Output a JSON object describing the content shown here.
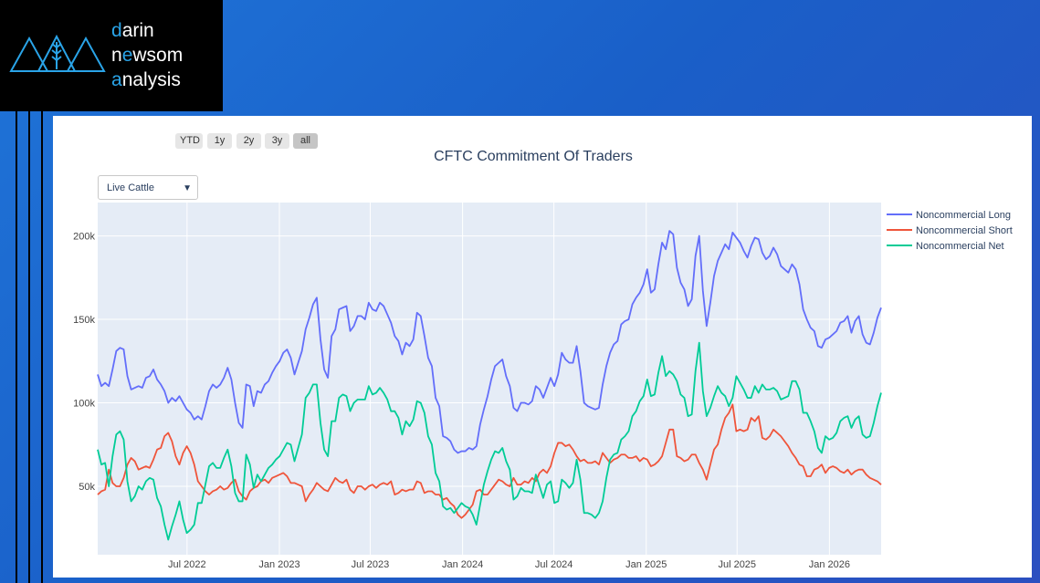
{
  "logo": {
    "lines": [
      {
        "accent": "d",
        "rest": "arin"
      },
      {
        "pre": "n",
        "accent": "e",
        "mid": "w",
        "rest": "som"
      },
      {
        "accent": "a",
        "rest": "nalysis"
      }
    ]
  },
  "range_selector": {
    "buttons": [
      "YTD",
      "1y",
      "2y",
      "3y",
      "all"
    ],
    "active": "all"
  },
  "dropdown": {
    "selected": "Live Cattle"
  },
  "colors": {
    "long": "#636efa",
    "short": "#ef553b",
    "net": "#00cc96",
    "plot_bg": "#e5ecf6"
  },
  "chart_data": {
    "type": "line",
    "title": "CFTC Commitment Of Traders",
    "xlabel": "",
    "ylabel": "",
    "x_start": "2022-01-04",
    "x_end": "2026-04-14",
    "x_ticks": [
      "Jul 2022",
      "Jan 2023",
      "Jul 2023",
      "Jan 2024",
      "Jul 2024",
      "Jan 2025",
      "Jul 2025",
      "Jan 2026"
    ],
    "y_ticks": [
      "50k",
      "100k",
      "150k",
      "200k"
    ],
    "ylim": [
      9000,
      220000
    ],
    "grid": true,
    "legend": "right",
    "series": [
      {
        "name": "Noncommercial Long",
        "values": [
          117000,
          110000,
          112000,
          110000,
          120000,
          131000,
          133000,
          132000,
          116000,
          108000,
          109000,
          110000,
          109000,
          115000,
          116000,
          120000,
          114000,
          111000,
          107000,
          100000,
          103000,
          101000,
          104000,
          100000,
          96000,
          94000,
          90000,
          92000,
          90000,
          98000,
          107000,
          111000,
          109000,
          111000,
          115000,
          121000,
          114000,
          100000,
          88000,
          85000,
          111000,
          110000,
          98000,
          107000,
          106000,
          111000,
          113000,
          118000,
          122000,
          125000,
          130000,
          132000,
          127000,
          117000,
          124000,
          131000,
          144000,
          151000,
          159000,
          163000,
          138000,
          120000,
          115000,
          140000,
          144000,
          156000,
          157000,
          158000,
          143000,
          146000,
          152000,
          152000,
          150000,
          160000,
          156000,
          155000,
          160000,
          158000,
          153000,
          148000,
          140000,
          137000,
          129000,
          136000,
          134000,
          138000,
          154000,
          152000,
          140000,
          127000,
          122000,
          103000,
          98000,
          80000,
          79000,
          77000,
          72000,
          70000,
          71000,
          71000,
          73000,
          72000,
          74000,
          87000,
          96000,
          104000,
          114000,
          122000,
          124000,
          126000,
          116000,
          110000,
          97000,
          95000,
          100000,
          100000,
          99000,
          101000,
          110000,
          108000,
          103000,
          109000,
          115000,
          110000,
          117000,
          130000,
          126000,
          124000,
          124000,
          134000,
          119000,
          100000,
          98000,
          97000,
          96000,
          97000,
          111000,
          122000,
          130000,
          135000,
          137000,
          147000,
          149000,
          150000,
          159000,
          163000,
          166000,
          171000,
          180000,
          166000,
          168000,
          183000,
          196000,
          192000,
          203000,
          201000,
          181000,
          172000,
          168000,
          158000,
          162000,
          188000,
          200000,
          167000,
          146000,
          160000,
          176000,
          185000,
          190000,
          195000,
          192000,
          202000,
          199000,
          196000,
          191000,
          187000,
          194000,
          199000,
          198000,
          190000,
          186000,
          188000,
          193000,
          189000,
          182000,
          180000,
          178000,
          183000,
          180000,
          171000,
          156000,
          150000,
          145000,
          143000,
          134000,
          133000,
          138000,
          139000,
          141000,
          143000,
          148000,
          149000,
          152000,
          142000,
          149000,
          152000,
          141000,
          136000,
          135000,
          142000,
          151000,
          157000
        ]
      },
      {
        "name": "Noncommercial Short",
        "values": [
          45000,
          47000,
          48000,
          60000,
          52000,
          50000,
          50000,
          55000,
          63000,
          67000,
          65000,
          60000,
          61000,
          62000,
          61000,
          66000,
          72000,
          73000,
          80000,
          82000,
          77000,
          68000,
          63000,
          70000,
          74000,
          70000,
          63000,
          53000,
          50000,
          47000,
          45000,
          47000,
          48000,
          50000,
          48000,
          49000,
          52000,
          54000,
          47000,
          44000,
          42000,
          47000,
          49000,
          50000,
          53000,
          54000,
          52000,
          55000,
          56000,
          57000,
          58000,
          56000,
          52000,
          52000,
          51000,
          50000,
          41000,
          45000,
          48000,
          52000,
          50000,
          48000,
          47000,
          51000,
          55000,
          53000,
          52000,
          54000,
          48000,
          46000,
          50000,
          50000,
          48000,
          50000,
          51000,
          49000,
          51000,
          52000,
          51000,
          53000,
          45000,
          46000,
          48000,
          47000,
          48000,
          48000,
          53000,
          52000,
          46000,
          47000,
          47000,
          45000,
          45000,
          42000,
          43000,
          40000,
          38000,
          33000,
          31000,
          33000,
          36000,
          39000,
          47000,
          48000,
          45000,
          45000,
          48000,
          51000,
          54000,
          53000,
          51000,
          50000,
          55000,
          51000,
          51000,
          53000,
          52000,
          55000,
          53000,
          58000,
          60000,
          58000,
          62000,
          70000,
          76000,
          76000,
          74000,
          75000,
          72000,
          68000,
          65000,
          66000,
          64000,
          64000,
          65000,
          63000,
          70000,
          67000,
          64000,
          66000,
          67000,
          69000,
          69000,
          67000,
          67000,
          68000,
          65000,
          67000,
          66000,
          62000,
          63000,
          65000,
          68000,
          76000,
          84000,
          84000,
          68000,
          67000,
          65000,
          66000,
          69000,
          69000,
          64000,
          60000,
          54000,
          63000,
          72000,
          75000,
          84000,
          91000,
          94000,
          99000,
          83000,
          84000,
          83000,
          84000,
          91000,
          89000,
          92000,
          79000,
          78000,
          80000,
          84000,
          82000,
          80000,
          77000,
          74000,
          70000,
          67000,
          63000,
          62000,
          56000,
          56000,
          60000,
          61000,
          63000,
          58000,
          61000,
          62000,
          61000,
          59000,
          58000,
          60000,
          57000,
          59000,
          60000,
          60000,
          57000,
          55000,
          54000,
          53000,
          51000
        ]
      },
      {
        "name": "Noncommercial Net",
        "values": [
          72000,
          63000,
          64000,
          50000,
          68000,
          81000,
          83000,
          78000,
          53000,
          41000,
          44000,
          50000,
          48000,
          53000,
          55000,
          54000,
          43000,
          38000,
          27000,
          18000,
          26000,
          33000,
          41000,
          30000,
          22000,
          24000,
          27000,
          40000,
          40000,
          51000,
          62000,
          64000,
          61000,
          61000,
          67000,
          72000,
          62000,
          46000,
          41000,
          41000,
          69000,
          63000,
          49000,
          57000,
          53000,
          57000,
          61000,
          63000,
          66000,
          68000,
          72000,
          76000,
          75000,
          65000,
          73000,
          81000,
          103000,
          106000,
          111000,
          111000,
          88000,
          72000,
          68000,
          89000,
          89000,
          103000,
          105000,
          104000,
          95000,
          100000,
          102000,
          102000,
          102000,
          110000,
          105000,
          106000,
          109000,
          106000,
          102000,
          95000,
          95000,
          91000,
          81000,
          89000,
          86000,
          90000,
          101000,
          100000,
          94000,
          80000,
          75000,
          58000,
          53000,
          38000,
          36000,
          37000,
          34000,
          37000,
          40000,
          38000,
          37000,
          33000,
          27000,
          39000,
          51000,
          59000,
          66000,
          71000,
          70000,
          73000,
          65000,
          60000,
          42000,
          44000,
          49000,
          47000,
          47000,
          46000,
          57000,
          50000,
          43000,
          51000,
          53000,
          40000,
          41000,
          54000,
          52000,
          49000,
          52000,
          66000,
          54000,
          34000,
          34000,
          33000,
          31000,
          34000,
          41000,
          55000,
          66000,
          69000,
          70000,
          78000,
          80000,
          83000,
          92000,
          95000,
          101000,
          104000,
          114000,
          104000,
          105000,
          118000,
          128000,
          116000,
          119000,
          117000,
          113000,
          105000,
          103000,
          92000,
          93000,
          119000,
          136000,
          107000,
          92000,
          97000,
          104000,
          110000,
          106000,
          104000,
          98000,
          103000,
          116000,
          112000,
          108000,
          103000,
          103000,
          110000,
          106000,
          111000,
          108000,
          108000,
          109000,
          107000,
          102000,
          103000,
          104000,
          113000,
          113000,
          108000,
          94000,
          94000,
          89000,
          83000,
          73000,
          70000,
          80000,
          78000,
          79000,
          82000,
          89000,
          91000,
          92000,
          85000,
          90000,
          92000,
          81000,
          79000,
          80000,
          88000,
          98000,
          106000
        ]
      }
    ]
  }
}
